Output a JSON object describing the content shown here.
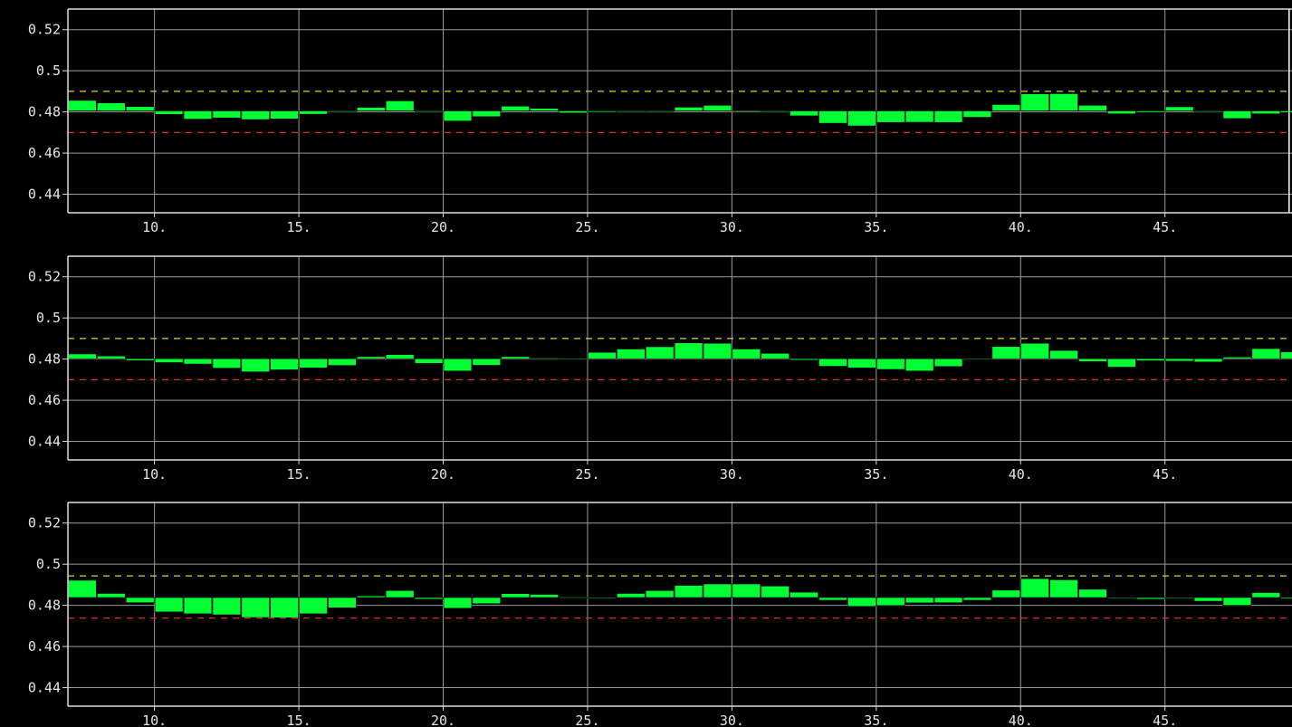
{
  "colors": {
    "background": "#000000",
    "frame": "#dddddd",
    "grid": "#9a9a9a",
    "bar": "#00ff33",
    "upper_limit": "#d8d83a",
    "lower_limit": "#d8322a",
    "text": "#e6e6e6"
  },
  "chart_data": [
    {
      "type": "bar",
      "xlim": [
        7,
        49.4
      ],
      "ylim": [
        0.431,
        0.53
      ],
      "x_ticks": [
        10,
        15,
        20,
        25,
        30,
        35,
        40,
        45
      ],
      "x_tick_labels": [
        "10.",
        "15.",
        "20.",
        "25.",
        "30.",
        "35.",
        "40.",
        "45."
      ],
      "y_ticks": [
        0.44,
        0.46,
        0.48,
        0.5,
        0.52
      ],
      "y_tick_labels": [
        "0.44",
        "0.46",
        "0.48",
        "0.5",
        "0.52"
      ],
      "grid": true,
      "baseline": 0.4805,
      "upper_limit": 0.49,
      "lower_limit": 0.47,
      "cursor_x": 49.3,
      "x": [
        7,
        8,
        9,
        10,
        11,
        12,
        13,
        14,
        15,
        16,
        17,
        18,
        19,
        20,
        21,
        22,
        23,
        24,
        25,
        26,
        27,
        28,
        29,
        30,
        31,
        32,
        33,
        34,
        35,
        36,
        37,
        38,
        39,
        40,
        41,
        42,
        43,
        44,
        45,
        46,
        47,
        48,
        49
      ],
      "values": [
        0.4856,
        0.4844,
        0.4826,
        0.4788,
        0.4765,
        0.4771,
        0.4763,
        0.4766,
        0.4789,
        0.4804,
        0.4822,
        0.4854,
        0.4803,
        0.4756,
        0.4777,
        0.4828,
        0.4817,
        0.4795,
        0.4799,
        0.4803,
        0.4801,
        0.4823,
        0.4832,
        0.4807,
        0.4801,
        0.4781,
        0.4745,
        0.4732,
        0.4749,
        0.475,
        0.4749,
        0.4774,
        0.4836,
        0.4888,
        0.4889,
        0.4832,
        0.4791,
        0.4798,
        0.4825,
        0.4801,
        0.4768,
        0.4791,
        0.4797
      ]
    },
    {
      "type": "bar",
      "xlim": [
        7,
        49.4
      ],
      "ylim": [
        0.431,
        0.53
      ],
      "x_ticks": [
        10,
        15,
        20,
        25,
        30,
        35,
        40,
        45
      ],
      "x_tick_labels": [
        "10.",
        "15.",
        "20.",
        "25.",
        "30.",
        "35.",
        "40.",
        "45."
      ],
      "y_ticks": [
        0.44,
        0.46,
        0.48,
        0.5,
        0.52
      ],
      "y_tick_labels": [
        "0.44",
        "0.46",
        "0.48",
        "0.5",
        "0.52"
      ],
      "grid": true,
      "baseline": 0.4802,
      "upper_limit": 0.49,
      "lower_limit": 0.47,
      "x": [
        7,
        8,
        9,
        10,
        11,
        12,
        13,
        14,
        15,
        16,
        17,
        18,
        19,
        20,
        21,
        22,
        23,
        24,
        25,
        26,
        27,
        28,
        29,
        30,
        31,
        32,
        33,
        34,
        35,
        36,
        37,
        38,
        39,
        40,
        41,
        42,
        43,
        44,
        45,
        46,
        47,
        48,
        49
      ],
      "values": [
        0.4825,
        0.4815,
        0.4793,
        0.4783,
        0.4776,
        0.4756,
        0.4738,
        0.4748,
        0.4757,
        0.4769,
        0.4812,
        0.4822,
        0.4779,
        0.4742,
        0.477,
        0.4812,
        0.4805,
        0.4798,
        0.4833,
        0.4849,
        0.486,
        0.4879,
        0.4877,
        0.4849,
        0.4828,
        0.4795,
        0.4765,
        0.4757,
        0.475,
        0.4742,
        0.4764,
        0.4802,
        0.4861,
        0.4877,
        0.4842,
        0.4788,
        0.4761,
        0.4792,
        0.479,
        0.4786,
        0.481,
        0.4851,
        0.4835
      ]
    },
    {
      "type": "bar",
      "xlim": [
        7,
        49.4
      ],
      "ylim": [
        0.431,
        0.53
      ],
      "x_ticks": [
        10,
        15,
        20,
        25,
        30,
        35,
        40,
        45
      ],
      "x_tick_labels": [
        "10.",
        "15.",
        "20.",
        "25.",
        "30.",
        "35.",
        "40.",
        "45."
      ],
      "y_ticks": [
        0.44,
        0.46,
        0.48,
        0.5,
        0.52
      ],
      "y_tick_labels": [
        "0.44",
        "0.46",
        "0.48",
        "0.5",
        "0.52"
      ],
      "grid": true,
      "baseline": 0.4838,
      "upper_limit": 0.4943,
      "lower_limit": 0.4738,
      "x": [
        7,
        8,
        9,
        10,
        11,
        12,
        13,
        14,
        15,
        16,
        17,
        18,
        19,
        20,
        21,
        22,
        23,
        24,
        25,
        26,
        27,
        28,
        29,
        30,
        31,
        32,
        33,
        34,
        35,
        36,
        37,
        38,
        39,
        40,
        41,
        42,
        43,
        44,
        45,
        46,
        47,
        48,
        49
      ],
      "values": [
        0.4922,
        0.4858,
        0.4813,
        0.4768,
        0.4759,
        0.4754,
        0.4741,
        0.474,
        0.4759,
        0.4788,
        0.4846,
        0.4872,
        0.483,
        0.4786,
        0.4808,
        0.4857,
        0.4853,
        0.484,
        0.4838,
        0.4858,
        0.4872,
        0.4897,
        0.4904,
        0.4904,
        0.4894,
        0.4864,
        0.4825,
        0.4795,
        0.4799,
        0.4812,
        0.4813,
        0.4825,
        0.4874,
        0.493,
        0.4924,
        0.4878,
        0.4838,
        0.483,
        0.4836,
        0.482,
        0.48,
        0.4862,
        0.4832
      ]
    }
  ]
}
